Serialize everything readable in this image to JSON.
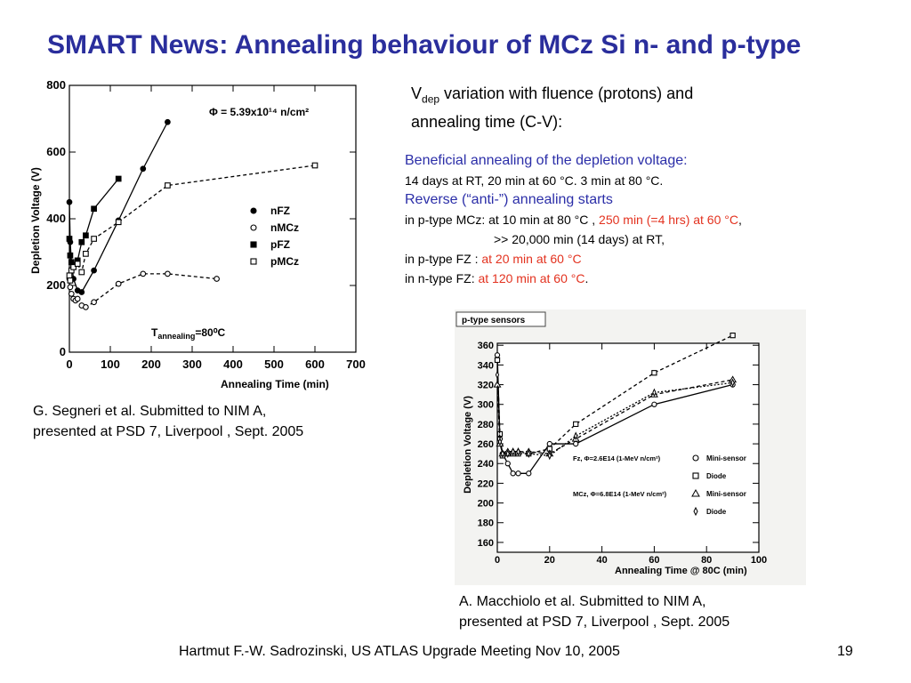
{
  "slide_title": "SMART News: Annealing behaviour of MCz Si n- and p-type",
  "vdep_text": {
    "v": "V",
    "sub": "dep",
    "rest": " variation with fluence (protons) and",
    "line2": "annealing time (C-V):"
  },
  "notes": {
    "heading1": "Beneficial annealing of the depletion voltage:",
    "line1": "14 days at RT, 20 min at 60 °C. 3 min at 80 °C.",
    "heading2": "Reverse (“anti-”) annealing starts",
    "line2_black": "in p-type MCz: at 10 min at 80 °C ,",
    "line2_red": "250 min (=4 hrs) at 60 °C",
    "line2_end": ",",
    "line3": ">> 20,000 min (14 days) at RT,",
    "line4_black": "in p-type FZ :",
    "line4_red": "at 20 min at 60 °C",
    "line5_black": "in n-type FZ:",
    "line5_red": "at 120 min at 60 °C",
    "line5_end": ".",
    "colors": {
      "blue": "#2b2ea8",
      "red": "#e3321f"
    }
  },
  "caption_left": {
    "line1": "G. Segneri et al. Submitted to NIM A,",
    "line2": "presented at PSD 7, Liverpool , Sept. 2005"
  },
  "caption_right": {
    "line1": "A.    Macchiolo et al. Submitted to NIM A,",
    "line2": "presented at PSD 7, Liverpool , Sept. 2005"
  },
  "footer": {
    "author": "Hartmut F.-W. Sadrozinski, US ATLAS Upgrade Meeting Nov 10,  2005",
    "page": "19"
  },
  "chart_data": [
    {
      "type": "line",
      "xlabel": "Annealing Time (min)",
      "ylabel": "Depletion Voltage (V)",
      "xlim": [
        0,
        700
      ],
      "ylim": [
        0,
        800
      ],
      "xticks": [
        0,
        100,
        200,
        300,
        400,
        500,
        600,
        700
      ],
      "yticks": [
        0,
        200,
        400,
        600,
        800
      ],
      "grid": false,
      "legend_position": "right",
      "annotation_fluence": "Φ = 5.39x10¹⁴ n/cm²",
      "annotation_temp_T": "T",
      "annotation_temp_sub": "annealing",
      "annotation_temp_rest": "=80⁰C",
      "series": [
        {
          "name": "nFZ",
          "marker": "filled-circle",
          "line": "solid",
          "x": [
            0,
            2,
            5,
            10,
            20,
            30,
            60,
            120,
            180,
            240
          ],
          "y": [
            450,
            330,
            270,
            220,
            185,
            180,
            245,
            395,
            550,
            690
          ]
        },
        {
          "name": "nMCz",
          "marker": "open-circle",
          "line": "dashed",
          "x": [
            0,
            2,
            5,
            10,
            15,
            20,
            30,
            40,
            60,
            120,
            180,
            240,
            360
          ],
          "y": [
            220,
            195,
            175,
            160,
            155,
            160,
            140,
            135,
            150,
            205,
            235,
            235,
            220
          ]
        },
        {
          "name": "pFZ",
          "marker": "filled-square",
          "line": "solid",
          "x": [
            0,
            2,
            5,
            10,
            20,
            30,
            40,
            60,
            120
          ],
          "y": [
            340,
            290,
            270,
            260,
            275,
            330,
            350,
            430,
            520
          ]
        },
        {
          "name": "pMCz",
          "marker": "open-square",
          "line": "dashed",
          "x": [
            0,
            2,
            5,
            10,
            20,
            30,
            40,
            60,
            120,
            240,
            600
          ],
          "y": [
            230,
            215,
            245,
            255,
            265,
            240,
            295,
            340,
            390,
            500,
            560
          ]
        }
      ]
    },
    {
      "type": "line",
      "panel_label": "p-type sensors",
      "xlabel": "Annealing Time @ 80C (min)",
      "ylabel": "Depletion Voltage (V)",
      "xlim": [
        0,
        100
      ],
      "ylim": [
        150,
        362
      ],
      "xticks": [
        0,
        20,
        40,
        60,
        80,
        100
      ],
      "yticks": [
        160,
        180,
        200,
        220,
        240,
        260,
        280,
        300,
        320,
        340,
        360
      ],
      "grid": false,
      "legend": [
        {
          "group": "Fz, Φ=2.6E14 (1-MeV n/cm²)",
          "marker": "open-circle",
          "label": "Mini-sensor"
        },
        {
          "group": "",
          "marker": "open-square",
          "label": "Diode"
        },
        {
          "group": "MCz, Φ=6.8E14 (1-MeV n/cm²)",
          "marker": "open-triangle",
          "label": "Mini-sensor"
        },
        {
          "group": "",
          "marker": "open-diamond",
          "label": "Diode"
        }
      ],
      "series": [
        {
          "name": "Fz Mini-sensor",
          "marker": "open-circle",
          "line": "solid",
          "x": [
            0,
            1,
            2,
            4,
            6,
            8,
            12,
            20,
            30,
            60,
            90
          ],
          "y": [
            350,
            265,
            250,
            240,
            230,
            230,
            230,
            260,
            260,
            300,
            320
          ]
        },
        {
          "name": "Fz Diode",
          "marker": "open-square",
          "line": "dashed",
          "x": [
            0,
            1,
            2,
            4,
            6,
            8,
            12,
            20,
            30,
            60,
            90
          ],
          "y": [
            345,
            270,
            248,
            250,
            250,
            250,
            250,
            255,
            280,
            332,
            370
          ]
        },
        {
          "name": "MCz Mini-sensor",
          "marker": "open-triangle",
          "line": "dashed",
          "x": [
            0,
            1,
            2,
            4,
            6,
            8,
            12,
            20,
            30,
            60,
            90
          ],
          "y": [
            320,
            260,
            250,
            252,
            252,
            252,
            252,
            250,
            265,
            310,
            325
          ]
        },
        {
          "name": "MCz Diode",
          "marker": "open-diamond",
          "line": "dotted",
          "x": [
            0,
            1,
            2,
            4,
            6,
            8,
            12,
            20,
            30,
            60,
            90
          ],
          "y": [
            330,
            262,
            250,
            250,
            252,
            252,
            250,
            248,
            268,
            312,
            322
          ]
        }
      ]
    }
  ]
}
